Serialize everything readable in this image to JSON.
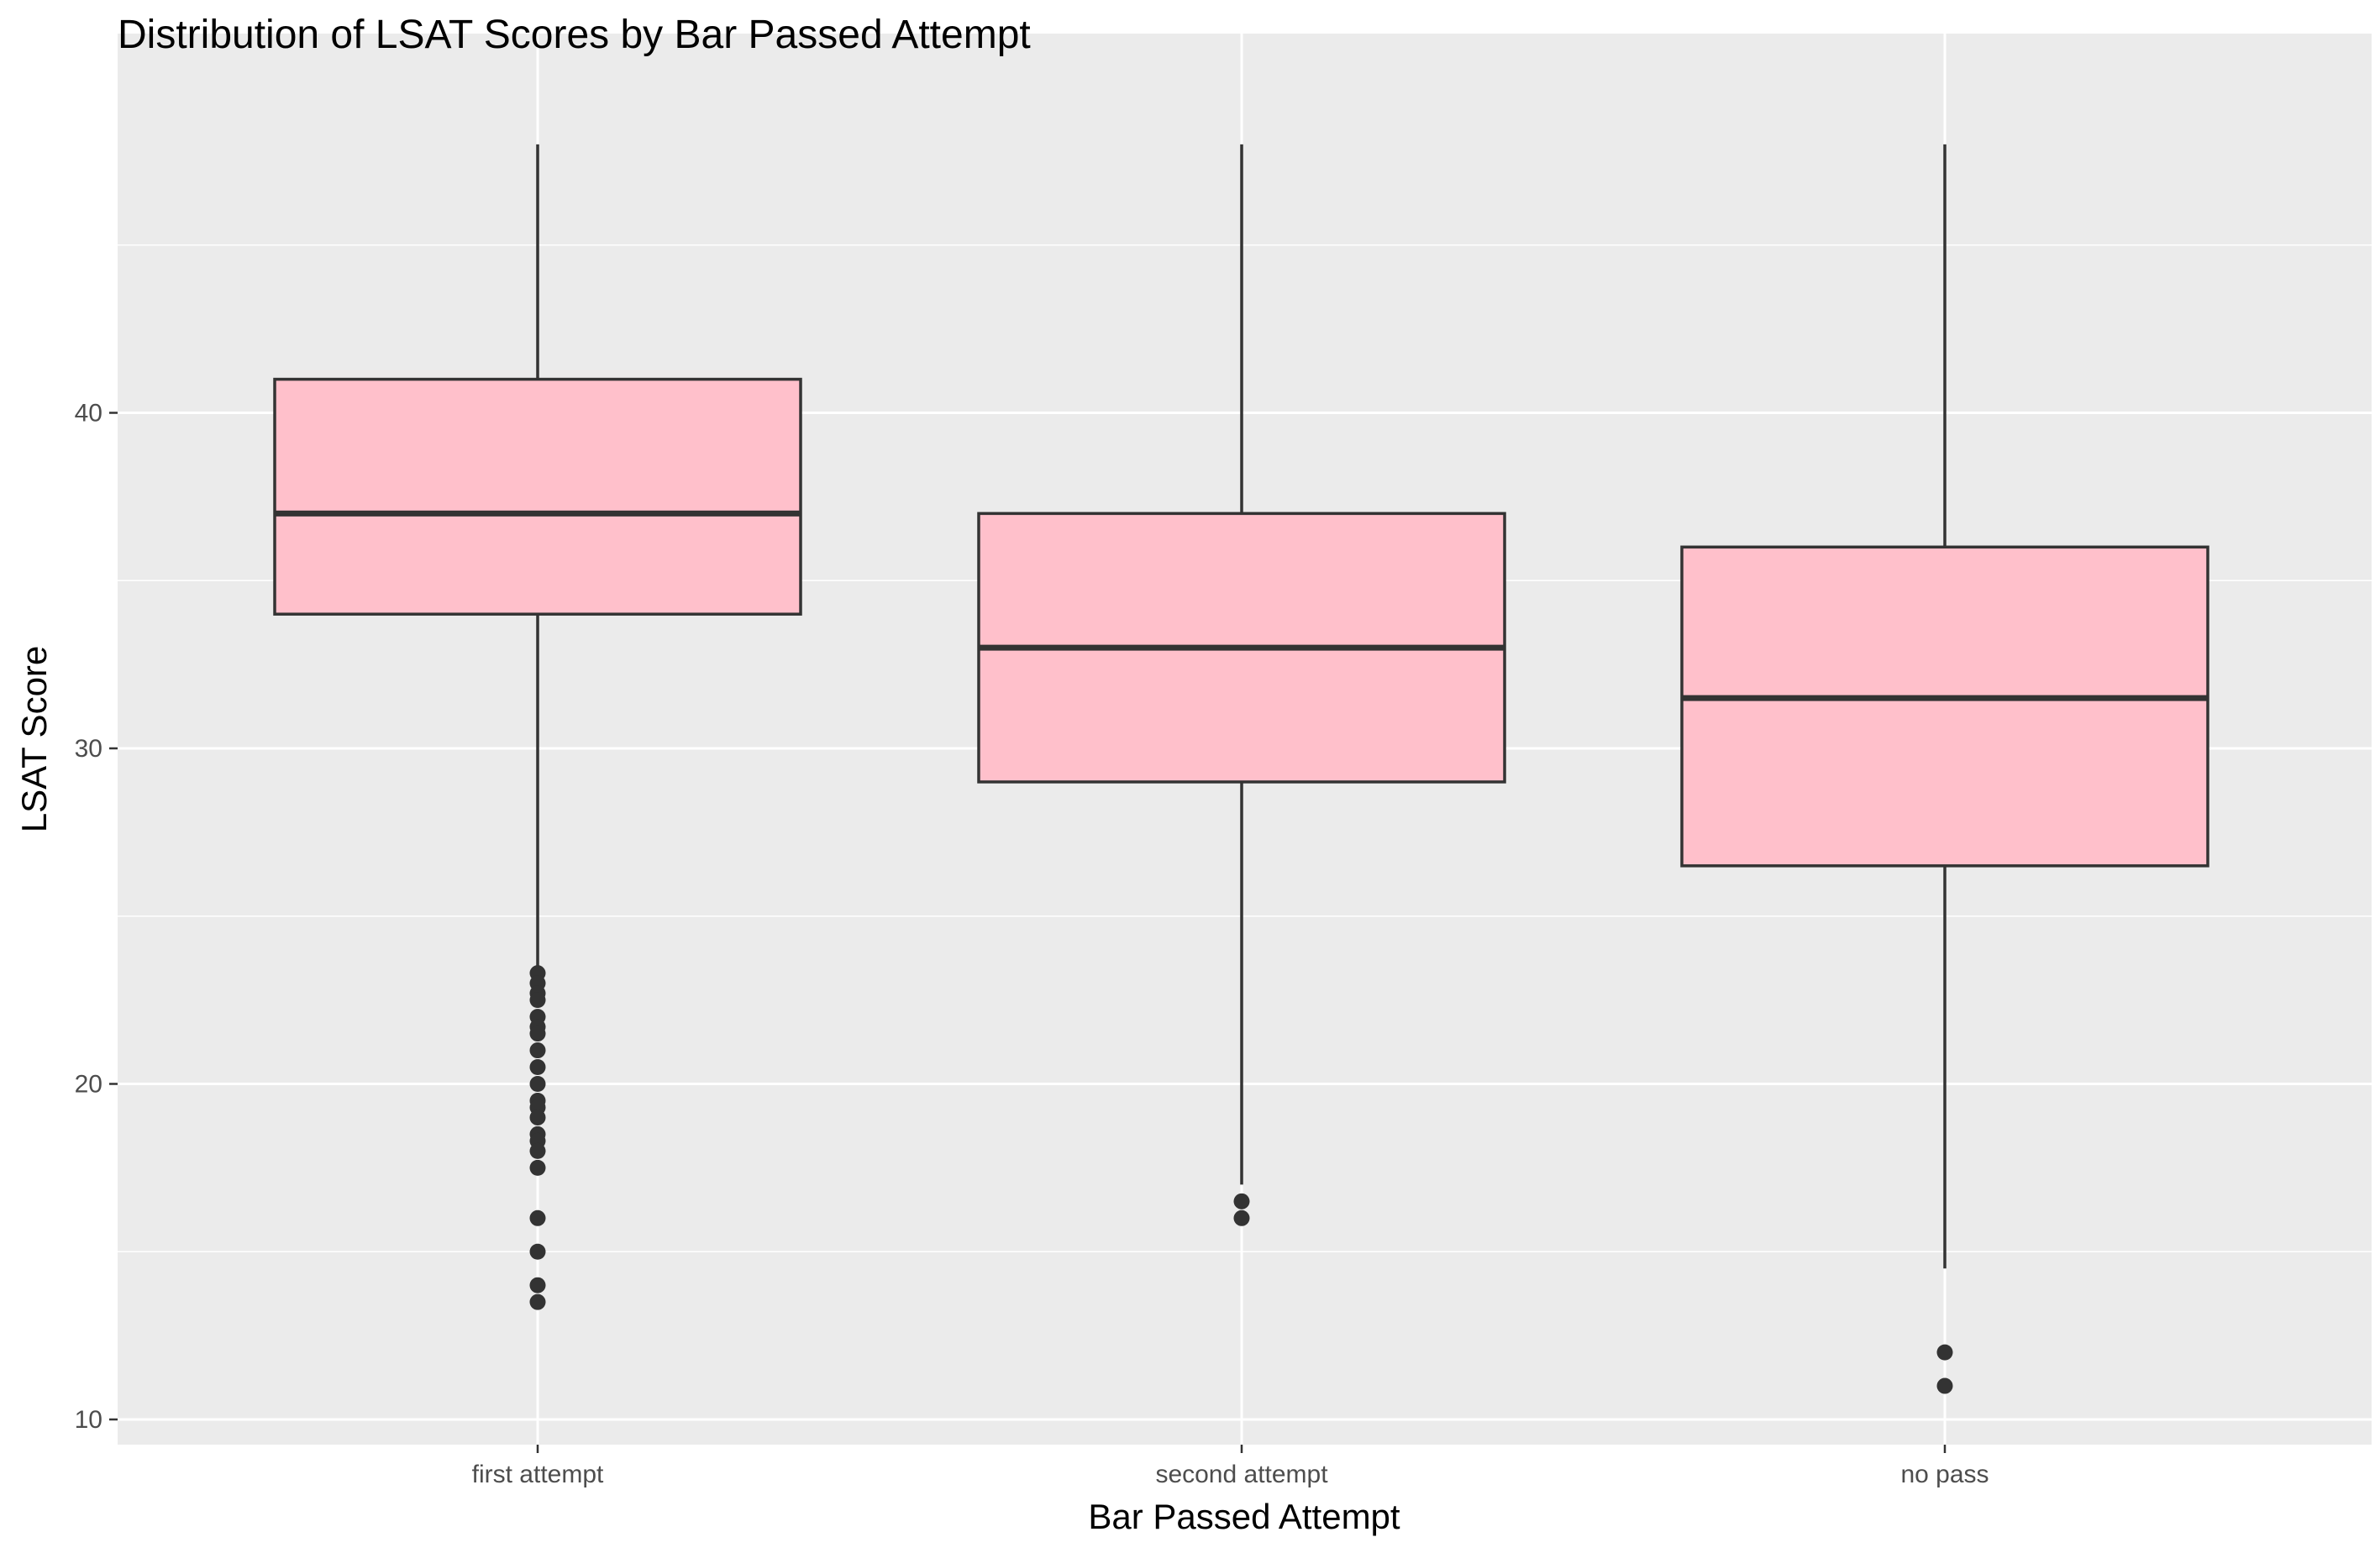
{
  "chart_data": {
    "type": "box",
    "title": "Distribution of LSAT Scores by Bar Passed Attempt",
    "xlabel": "Bar Passed Attempt",
    "ylabel": "LSAT Score",
    "ylim": [
      9.2,
      49.8
    ],
    "y_ticks": [
      10,
      20,
      30,
      40
    ],
    "y_minor_ticks": [
      15,
      25,
      35,
      45
    ],
    "categories": [
      "first attempt",
      "second attempt",
      "no pass"
    ],
    "grid": true,
    "colors": {
      "panel": "#EBEBEB",
      "grid": "#FFFFFF",
      "box_fill": "#FFC0CB",
      "box_line": "#333333"
    },
    "boxes": [
      {
        "category": "first attempt",
        "min": 13.5,
        "q1": 34.0,
        "median": 37.0,
        "q3": 41.0,
        "max": 48.0,
        "whisker_low": 23.5,
        "whisker_high": 48.0,
        "outliers": [
          23.3,
          23.0,
          22.7,
          22.5,
          22.0,
          21.7,
          21.5,
          21.0,
          20.5,
          20.0,
          19.5,
          19.3,
          19.0,
          18.5,
          18.3,
          18.0,
          17.5,
          16.0,
          15.0,
          14.0,
          13.5
        ]
      },
      {
        "category": "second attempt",
        "min": 16.0,
        "q1": 29.0,
        "median": 33.0,
        "q3": 37.0,
        "max": 48.0,
        "whisker_low": 17.0,
        "whisker_high": 48.0,
        "outliers": [
          16.5,
          16.0
        ]
      },
      {
        "category": "no pass",
        "min": 11.0,
        "q1": 26.5,
        "median": 31.5,
        "q3": 36.0,
        "max": 48.0,
        "whisker_low": 14.5,
        "whisker_high": 48.0,
        "outliers": [
          12.0,
          11.0
        ]
      }
    ]
  }
}
